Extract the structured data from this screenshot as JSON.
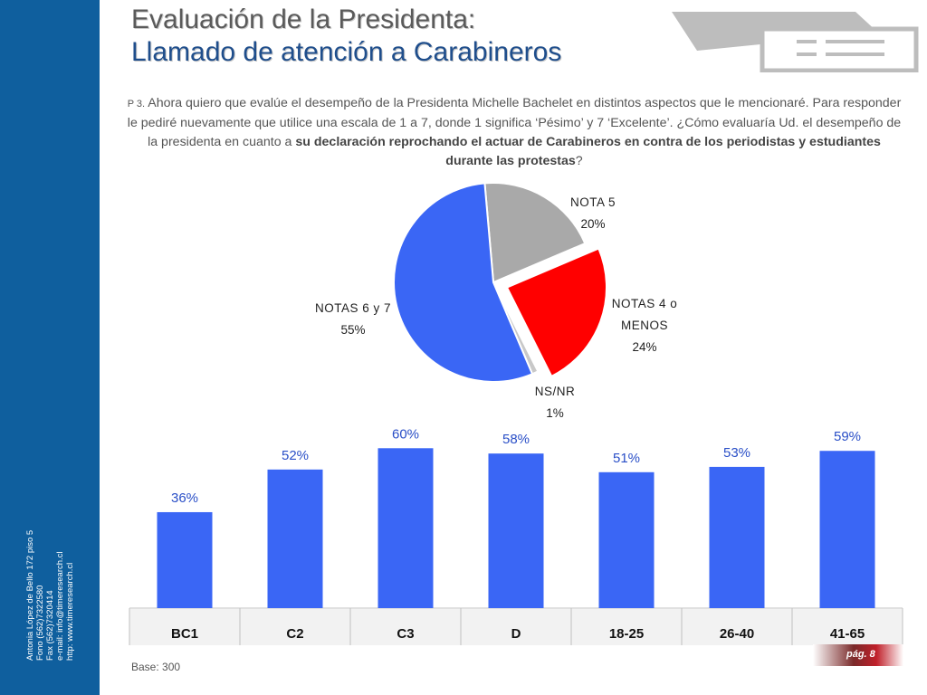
{
  "title": {
    "line1": "Evaluación de la Presidenta:",
    "line2": "Llamado de atención a Carabineros"
  },
  "question": {
    "number": "P 3.",
    "text_start": "Ahora quiero que evalúe el desempeño de la Presidenta Michelle Bachelet en distintos aspectos que le mencionaré. Para responder le pediré nuevamente que utilice una escala de 1 a 7, donde 1 significa ‘Pésimo’ y 7 ‘Excelente’. ¿Cómo evaluaría Ud. el desempeño de la presidenta en cuanto a",
    "text_bold": "su declaración reprochando el actuar de Carabineros en contra de los periodistas y estudiantes durante las protestas",
    "text_end": "?"
  },
  "sidebar": {
    "contact": [
      "Antonia López de Bello 172 piso 5",
      "Fono (562)7322580",
      "Fax (562)7320414",
      "e-mail: info@timeresearch.cl",
      "http: www.timeresearch.cl"
    ]
  },
  "chart_data": [
    {
      "type": "pie",
      "slices": [
        {
          "label": "NOTA  5",
          "value": 20,
          "value_label": "20%",
          "color": "#a9a9a9",
          "exploded": false
        },
        {
          "label": "NOTAS 4 o MENOS",
          "label_lines": [
            "NOTAS 4 o",
            "MENOS"
          ],
          "value": 24,
          "value_label": "24%",
          "color": "#ff0000",
          "exploded": true
        },
        {
          "label": "NS/NR",
          "value": 1,
          "value_label": "1%",
          "color": "#c8c8c8",
          "exploded": false
        },
        {
          "label": "NOTAS 6 y 7",
          "value": 55,
          "value_label": "55%",
          "color": "#3a66f5",
          "exploded": false
        }
      ]
    },
    {
      "type": "bar",
      "categories": [
        "BC1",
        "C2",
        "C3",
        "D",
        "18-25",
        "26-40",
        "41-65"
      ],
      "values": [
        36,
        52,
        60,
        58,
        51,
        53,
        59
      ],
      "value_labels": [
        "36%",
        "52%",
        "60%",
        "58%",
        "51%",
        "53%",
        "59%"
      ],
      "bar_color": "#3a66f5",
      "label_color": "#2a4fc7",
      "ylim": [
        0,
        73
      ]
    }
  ],
  "footer": {
    "base": "Base: 300",
    "page": "pág. 8"
  }
}
